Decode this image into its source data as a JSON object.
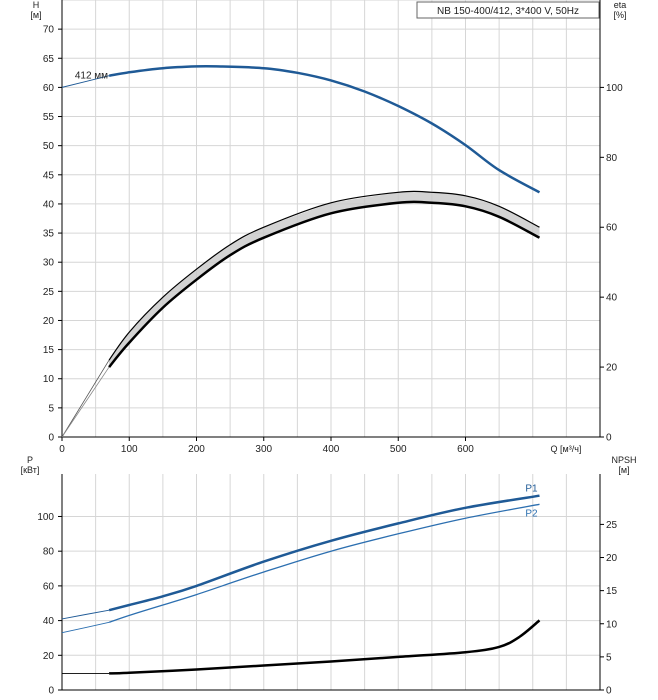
{
  "chart_data": [
    {
      "type": "line",
      "title": "NB 150-400/412, 3*400 V, 50Hz",
      "xlabel": "Q [м³/ч]",
      "ylabel": "H\n[м]",
      "ylabel_right": "eta\n[%]",
      "xlim": [
        0,
        800
      ],
      "ylim": [
        0,
        75
      ],
      "ylim_right": [
        0,
        125
      ],
      "x_ticks": [
        0,
        100,
        200,
        300,
        400,
        500,
        600
      ],
      "y_ticks": [
        0,
        5,
        10,
        15,
        20,
        25,
        30,
        35,
        40,
        45,
        50,
        55,
        60,
        65,
        70
      ],
      "y_ticks_right": [
        0,
        20,
        40,
        60,
        80,
        100
      ],
      "grid": true,
      "series": [
        {
          "name": "H",
          "axis": "left",
          "color": "#1f5a96",
          "x": [
            0,
            70,
            100,
            150,
            200,
            230,
            300,
            350,
            400,
            450,
            500,
            550,
            600,
            650,
            710
          ],
          "y": [
            60,
            62,
            62.6,
            63.3,
            63.6,
            63.6,
            63.3,
            62.5,
            61.2,
            59.3,
            56.8,
            53.8,
            50.1,
            45.8,
            42
          ]
        },
        {
          "name": "eta_max",
          "axis": "right",
          "color": "#000000",
          "x": [
            0,
            70,
            100,
            150,
            200,
            250,
            300,
            400,
            500,
            550,
            600,
            650,
            710
          ],
          "y": [
            0,
            22,
            30,
            40,
            48,
            55,
            60,
            67,
            70,
            70,
            69,
            66,
            60
          ]
        },
        {
          "name": "eta",
          "axis": "right",
          "color": "#000000",
          "x": [
            70,
            100,
            150,
            200,
            250,
            300,
            400,
            500,
            550,
            600,
            650,
            710
          ],
          "y": [
            20,
            27,
            37,
            45,
            52,
            57,
            64,
            67,
            67,
            66,
            63,
            57
          ]
        }
      ],
      "annotations": [
        {
          "text": "412 мм",
          "x": 70,
          "y": 62.1
        }
      ]
    },
    {
      "type": "line",
      "ylabel": "P\n[кВт]",
      "ylabel_right": "NPSH\n[м]",
      "xlim": [
        0,
        800
      ],
      "ylim": [
        0,
        120
      ],
      "ylim_right": [
        0,
        30
      ],
      "y_ticks": [
        0,
        20,
        40,
        60,
        80,
        100
      ],
      "y_ticks_right": [
        0,
        5,
        10,
        15,
        20,
        25
      ],
      "grid": true,
      "series": [
        {
          "name": "P1",
          "axis": "left",
          "color": "#1f5a96",
          "x": [
            0,
            70,
            100,
            150,
            200,
            300,
            400,
            500,
            600,
            710
          ],
          "y": [
            41,
            46,
            49,
            54,
            60,
            74,
            86,
            96,
            105,
            112
          ]
        },
        {
          "name": "P2",
          "axis": "left",
          "color": "#2c6fb0",
          "x": [
            0,
            70,
            100,
            150,
            200,
            300,
            400,
            500,
            600,
            710
          ],
          "y": [
            33,
            39,
            43,
            49,
            55,
            68,
            80,
            90,
            99,
            107
          ]
        },
        {
          "name": "NPSH",
          "axis": "right",
          "color": "#000000",
          "x": [
            0,
            70,
            100,
            200,
            300,
            400,
            500,
            600,
            650,
            680,
            710
          ],
          "y": [
            2.5,
            2.5,
            2.6,
            3.1,
            3.7,
            4.3,
            5,
            5.7,
            6.5,
            8,
            10.5
          ]
        }
      ]
    }
  ]
}
